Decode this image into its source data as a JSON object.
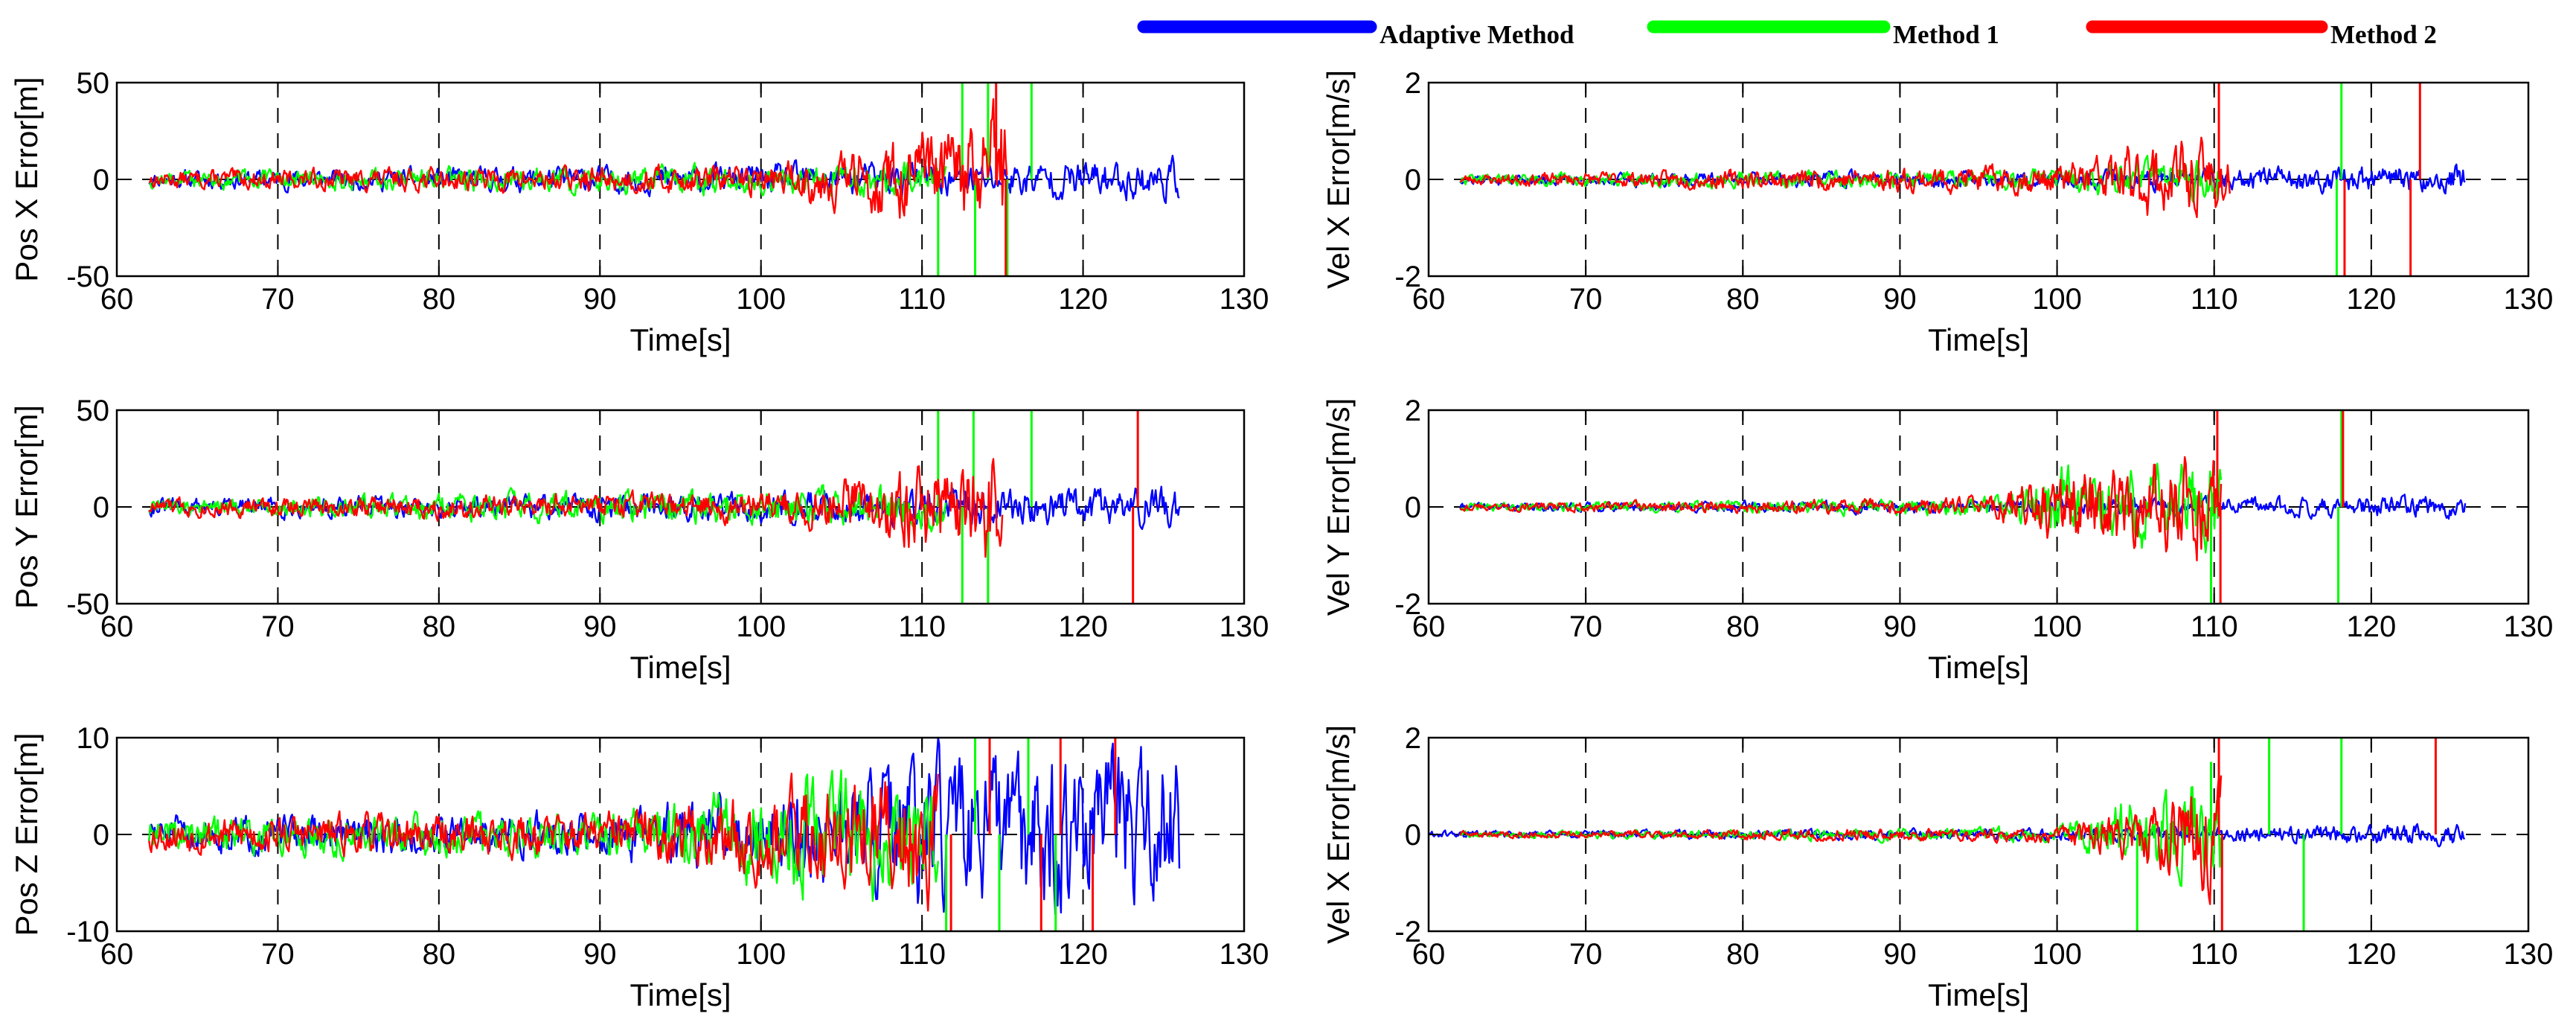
{
  "legend": [
    {
      "label": "Adaptive Method",
      "color": "#0000ff"
    },
    {
      "label": "Method 1",
      "color": "#00ff00"
    },
    {
      "label": "Method 2",
      "color": "#ff0000"
    }
  ],
  "chart_data": [
    {
      "type": "line",
      "position": "left-top",
      "title": "",
      "xlabel": "Time[s]",
      "ylabel": "Pos X Error[m]",
      "xlim": [
        60,
        130
      ],
      "ylim": [
        -50,
        50
      ],
      "xticks": [
        60,
        70,
        80,
        90,
        100,
        110,
        120,
        130
      ],
      "yticks": [
        -50,
        0,
        50
      ],
      "vgrid": [
        70,
        80,
        90,
        100,
        110,
        120
      ],
      "zero_line": true,
      "series": [
        {
          "name": "Adaptive Method",
          "color": "#0000ff",
          "t_start": 62,
          "t_end": 126,
          "amp": [
            [
              62,
              3
            ],
            [
              100,
              5
            ],
            [
              126,
              7
            ]
          ],
          "seed": 11,
          "spikes": []
        },
        {
          "name": "Method 1",
          "color": "#00ff00",
          "t_start": 62,
          "t_end": 111.5,
          "amp": [
            [
              62,
              3
            ],
            [
              100,
              5
            ],
            [
              111,
              6
            ]
          ],
          "seed": 12,
          "spikes": [
            [
              111,
              -50
            ],
            [
              112.5,
              50
            ],
            [
              113.3,
              -50
            ],
            [
              114.1,
              50
            ],
            [
              115.3,
              -50
            ],
            [
              116.8,
              50
            ]
          ]
        },
        {
          "name": "Method 2",
          "color": "#ff0000",
          "t_start": 62,
          "t_end": 115.3,
          "amp": [
            [
              62,
              3
            ],
            [
              100,
              5
            ],
            [
              110,
              15
            ],
            [
              115,
              25
            ]
          ],
          "seed": 13,
          "spikes": [
            [
              114.6,
              50
            ],
            [
              115.2,
              -50
            ]
          ]
        }
      ]
    },
    {
      "type": "line",
      "position": "right-top",
      "title": "",
      "xlabel": "Time[s]",
      "ylabel": "Vel X Error[m/s]",
      "xlim": [
        60,
        130
      ],
      "ylim": [
        -2,
        2
      ],
      "xticks": [
        60,
        70,
        80,
        90,
        100,
        110,
        120,
        130
      ],
      "yticks": [
        -2,
        0,
        2
      ],
      "vgrid": [
        70,
        80,
        90,
        100,
        110,
        120
      ],
      "zero_line": true,
      "series": [
        {
          "name": "Adaptive Method",
          "color": "#0000ff",
          "t_start": 62,
          "t_end": 126,
          "amp": [
            [
              62,
              0.07
            ],
            [
              100,
              0.12
            ],
            [
              126,
              0.2
            ]
          ],
          "seed": 21,
          "spikes": []
        },
        {
          "name": "Method 1",
          "color": "#00ff00",
          "t_start": 62,
          "t_end": 110.5,
          "amp": [
            [
              62,
              0.07
            ],
            [
              100,
              0.15
            ],
            [
              110,
              0.3
            ]
          ],
          "seed": 22,
          "spikes": [
            [
              117.8,
              -2
            ],
            [
              118.1,
              2
            ]
          ]
        },
        {
          "name": "Method 2",
          "color": "#ff0000",
          "t_start": 62,
          "t_end": 111,
          "amp": [
            [
              62,
              0.07
            ],
            [
              100,
              0.2
            ],
            [
              106,
              0.5
            ],
            [
              110,
              0.5
            ]
          ],
          "seed": 23,
          "spikes": [
            [
              110.3,
              2
            ],
            [
              118.3,
              -2
            ],
            [
              122.5,
              -2
            ],
            [
              123.1,
              2
            ]
          ]
        }
      ]
    },
    {
      "type": "line",
      "position": "left-middle",
      "title": "",
      "xlabel": "Time[s]",
      "ylabel": "Pos Y Error[m]",
      "xlim": [
        60,
        130
      ],
      "ylim": [
        -50,
        50
      ],
      "xticks": [
        60,
        70,
        80,
        90,
        100,
        110,
        120,
        130
      ],
      "yticks": [
        -50,
        0,
        50
      ],
      "vgrid": [
        70,
        80,
        90,
        100,
        110,
        120
      ],
      "zero_line": true,
      "series": [
        {
          "name": "Adaptive Method",
          "color": "#0000ff",
          "t_start": 62,
          "t_end": 126,
          "amp": [
            [
              62,
              3
            ],
            [
              100,
              5
            ],
            [
              126,
              7
            ]
          ],
          "seed": 31,
          "spikes": []
        },
        {
          "name": "Method 1",
          "color": "#00ff00",
          "t_start": 62,
          "t_end": 111.5,
          "amp": [
            [
              62,
              3
            ],
            [
              100,
              6
            ],
            [
              111,
              8
            ]
          ],
          "seed": 32,
          "spikes": [
            [
              111,
              50
            ],
            [
              112.5,
              -50
            ],
            [
              113.2,
              50
            ],
            [
              114.1,
              -50
            ],
            [
              116.8,
              50
            ]
          ]
        },
        {
          "name": "Method 2",
          "color": "#ff0000",
          "t_start": 62,
          "t_end": 115,
          "amp": [
            [
              62,
              3
            ],
            [
              100,
              5
            ],
            [
              110,
              15
            ],
            [
              115,
              20
            ]
          ],
          "seed": 33,
          "spikes": [
            [
              123.1,
              -50
            ],
            [
              123.4,
              50
            ]
          ]
        }
      ]
    },
    {
      "type": "line",
      "position": "right-middle",
      "title": "",
      "xlabel": "Time[s]",
      "ylabel": "Vel Y Error[m/s]",
      "xlim": [
        60,
        130
      ],
      "ylim": [
        -2,
        2
      ],
      "xticks": [
        60,
        70,
        80,
        90,
        100,
        110,
        120,
        130
      ],
      "yticks": [
        -2,
        0,
        2
      ],
      "vgrid": [
        70,
        80,
        90,
        100,
        110,
        120
      ],
      "zero_line": true,
      "series": [
        {
          "name": "Adaptive Method",
          "color": "#0000ff",
          "t_start": 62,
          "t_end": 126,
          "amp": [
            [
              62,
              0.05
            ],
            [
              100,
              0.1
            ],
            [
              126,
              0.15
            ]
          ],
          "seed": 41,
          "spikes": []
        },
        {
          "name": "Method 1",
          "color": "#00ff00",
          "t_start": 62,
          "t_end": 110.5,
          "amp": [
            [
              62,
              0.05
            ],
            [
              95,
              0.12
            ],
            [
              100,
              0.5
            ],
            [
              110,
              0.6
            ]
          ],
          "seed": 42,
          "spikes": [
            [
              109.8,
              -2
            ],
            [
              117.9,
              -2
            ],
            [
              118.1,
              2
            ]
          ]
        },
        {
          "name": "Method 2",
          "color": "#ff0000",
          "t_start": 62,
          "t_end": 110.5,
          "amp": [
            [
              62,
              0.05
            ],
            [
              95,
              0.12
            ],
            [
              100,
              0.5
            ],
            [
              110,
              0.7
            ]
          ],
          "seed": 43,
          "spikes": [
            [
              110.2,
              2
            ],
            [
              110.4,
              -2
            ],
            [
              118.2,
              2
            ]
          ]
        }
      ]
    },
    {
      "type": "line",
      "position": "left-bottom",
      "title": "",
      "xlabel": "Time[s]",
      "ylabel": "Pos Z Error[m]",
      "xlim": [
        60,
        130
      ],
      "ylim": [
        -10,
        10
      ],
      "xticks": [
        60,
        70,
        80,
        90,
        100,
        110,
        120,
        130
      ],
      "yticks": [
        -10,
        0,
        10
      ],
      "vgrid": [
        70,
        80,
        90,
        100,
        110,
        120
      ],
      "zero_line": true,
      "series": [
        {
          "name": "Adaptive Method",
          "color": "#0000ff",
          "t_start": 62,
          "t_end": 126,
          "amp": [
            [
              62,
              1.2
            ],
            [
              90,
              1.5
            ],
            [
              100,
              3
            ],
            [
              110,
              5
            ],
            [
              126,
              6
            ]
          ],
          "seed": 51,
          "spikes": []
        },
        {
          "name": "Method 1",
          "color": "#00ff00",
          "t_start": 62,
          "t_end": 111,
          "amp": [
            [
              62,
              1.2
            ],
            [
              90,
              1.5
            ],
            [
              100,
              3.5
            ],
            [
              110,
              4.5
            ]
          ],
          "seed": 52,
          "spikes": [
            [
              111.5,
              -10
            ],
            [
              113.3,
              10
            ],
            [
              114.8,
              -10
            ],
            [
              116.6,
              10
            ],
            [
              118.3,
              -10
            ]
          ]
        },
        {
          "name": "Method 2",
          "color": "#ff0000",
          "t_start": 62,
          "t_end": 111,
          "amp": [
            [
              62,
              1.2
            ],
            [
              90,
              1.5
            ],
            [
              100,
              3
            ],
            [
              110,
              4.5
            ]
          ],
          "seed": 53,
          "spikes": [
            [
              111.8,
              -10
            ],
            [
              114.2,
              10
            ],
            [
              117.4,
              -10
            ],
            [
              118.6,
              10
            ],
            [
              120.6,
              -10
            ],
            [
              122,
              10
            ]
          ]
        }
      ]
    },
    {
      "type": "line",
      "position": "right-bottom",
      "title": "",
      "xlabel": "Time[s]",
      "ylabel": "Vel X Error[m/s]",
      "xlim": [
        60,
        130
      ],
      "ylim": [
        -2,
        2
      ],
      "xticks": [
        60,
        70,
        80,
        90,
        100,
        110,
        120,
        130
      ],
      "yticks": [
        -2,
        0,
        2
      ],
      "vgrid": [
        70,
        80,
        90,
        100,
        110,
        120
      ],
      "zero_line": true,
      "series": [
        {
          "name": "Adaptive Method",
          "color": "#0000ff",
          "t_start": 60,
          "t_end": 126,
          "amp": [
            [
              60,
              0.05
            ],
            [
              100,
              0.08
            ],
            [
              126,
              0.15
            ]
          ],
          "seed": 61,
          "spikes": []
        },
        {
          "name": "Method 1",
          "color": "#00ff00",
          "t_start": 62,
          "t_end": 110.5,
          "amp": [
            [
              62,
              0.04
            ],
            [
              100,
              0.1
            ],
            [
              105,
              0.5
            ],
            [
              110,
              0.7
            ]
          ],
          "seed": 62,
          "spikes": [
            [
              105.1,
              -2
            ],
            [
              109.8,
              1.5
            ],
            [
              113.5,
              2
            ],
            [
              115.7,
              -2
            ],
            [
              118.1,
              2
            ]
          ]
        },
        {
          "name": "Method 2",
          "color": "#ff0000",
          "t_start": 62,
          "t_end": 110.5,
          "amp": [
            [
              62,
              0.04
            ],
            [
              100,
              0.1
            ],
            [
              105,
              0.4
            ],
            [
              110,
              0.8
            ]
          ],
          "seed": 63,
          "spikes": [
            [
              110.3,
              2
            ],
            [
              110.5,
              -2
            ],
            [
              124.1,
              2
            ]
          ]
        }
      ]
    }
  ]
}
